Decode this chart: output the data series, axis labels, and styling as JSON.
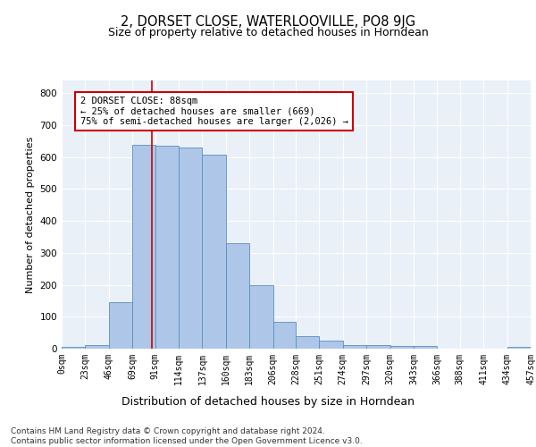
{
  "title1": "2, DORSET CLOSE, WATERLOOVILLE, PO8 9JG",
  "title2": "Size of property relative to detached houses in Horndean",
  "xlabel": "Distribution of detached houses by size in Horndean",
  "ylabel": "Number of detached properties",
  "bar_values": [
    5,
    10,
    145,
    638,
    635,
    630,
    608,
    330,
    200,
    84,
    40,
    25,
    10,
    12,
    8,
    8,
    0,
    0,
    0,
    5
  ],
  "bin_edges": [
    0,
    23,
    46,
    69,
    91,
    114,
    137,
    160,
    183,
    206,
    228,
    251,
    274,
    297,
    320,
    343,
    366,
    388,
    411,
    434,
    457
  ],
  "tick_labels": [
    "0sqm",
    "23sqm",
    "46sqm",
    "69sqm",
    "91sqm",
    "114sqm",
    "137sqm",
    "160sqm",
    "183sqm",
    "206sqm",
    "228sqm",
    "251sqm",
    "274sqm",
    "297sqm",
    "320sqm",
    "343sqm",
    "366sqm",
    "388sqm",
    "411sqm",
    "434sqm",
    "457sqm"
  ],
  "bar_color": "#aec6e8",
  "bar_edge_color": "#5a8fc0",
  "vline_x": 88,
  "vline_color": "#cc0000",
  "annotation_text": "2 DORSET CLOSE: 88sqm\n← 25% of detached houses are smaller (669)\n75% of semi-detached houses are larger (2,026) →",
  "annotation_box_color": "#ffffff",
  "annotation_box_edge": "#cc0000",
  "ylim": [
    0,
    840
  ],
  "yticks": [
    0,
    100,
    200,
    300,
    400,
    500,
    600,
    700,
    800
  ],
  "footer_text": "Contains HM Land Registry data © Crown copyright and database right 2024.\nContains public sector information licensed under the Open Government Licence v3.0.",
  "plot_bg_color": "#eaf0f8",
  "title1_fontsize": 10.5,
  "title2_fontsize": 9,
  "xlabel_fontsize": 9,
  "ylabel_fontsize": 8,
  "footer_fontsize": 6.5,
  "tick_fontsize": 7,
  "annot_fontsize": 7.5
}
